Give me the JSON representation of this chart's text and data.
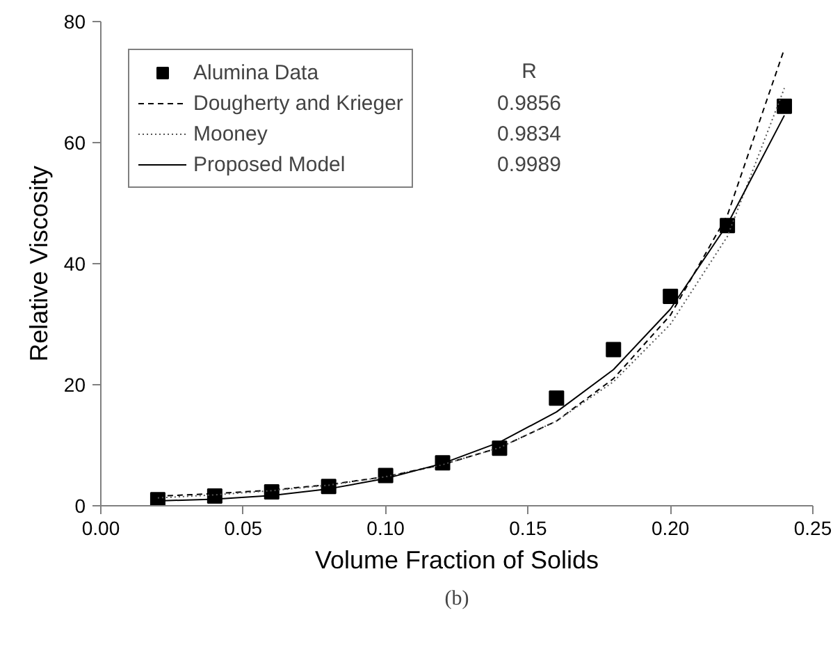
{
  "chart_data": {
    "type": "line",
    "xlabel": "Volume Fraction of Solids",
    "ylabel": "Relative Viscosity",
    "x": [
      0.02,
      0.04,
      0.06,
      0.08,
      0.1,
      0.12,
      0.14,
      0.16,
      0.18,
      0.2,
      0.22,
      0.24
    ],
    "series": [
      {
        "name": "Alumina Data",
        "type": "scatter",
        "marker": "square",
        "color": "#000000",
        "values": [
          1.0,
          1.6,
          2.3,
          3.2,
          5.0,
          7.1,
          9.5,
          17.8,
          25.8,
          34.6,
          46.3,
          66.0
        ]
      },
      {
        "name": "Dougherty and Krieger",
        "line_style": "dashed",
        "color": "#000000",
        "values": [
          1.6,
          2.0,
          2.6,
          3.5,
          4.8,
          6.8,
          9.6,
          14.0,
          21.0,
          31.5,
          48.0,
          75.5
        ]
      },
      {
        "name": "Mooney",
        "line_style": "dotted",
        "color": "#555555",
        "values": [
          1.3,
          1.8,
          2.5,
          3.4,
          4.8,
          6.8,
          9.6,
          14.0,
          20.5,
          30.0,
          44.5,
          69.0
        ]
      },
      {
        "name": "Proposed Model",
        "line_style": "solid",
        "color": "#000000",
        "values": [
          0.8,
          1.1,
          1.7,
          2.8,
          4.5,
          7.0,
          10.5,
          15.5,
          22.5,
          32.5,
          46.5,
          64.5
        ]
      }
    ],
    "xlim": [
      0.0,
      0.25
    ],
    "xticks": [
      {
        "value": 0,
        "label": "0.00"
      },
      {
        "value": 0.05,
        "label": "0.05"
      },
      {
        "value": 0.1,
        "label": "0.10"
      },
      {
        "value": 0.15,
        "label": "0.15"
      },
      {
        "value": 0.2,
        "label": "0.20"
      },
      {
        "value": 0.25,
        "label": "0.25"
      }
    ],
    "ylim": [
      0,
      80
    ],
    "yticks": [
      0,
      20,
      40,
      60,
      80
    ],
    "legend": "top left",
    "grid": false,
    "annotations": [
      "R",
      "0.9856",
      "0.9834",
      "0.9989",
      "(b)"
    ]
  }
}
